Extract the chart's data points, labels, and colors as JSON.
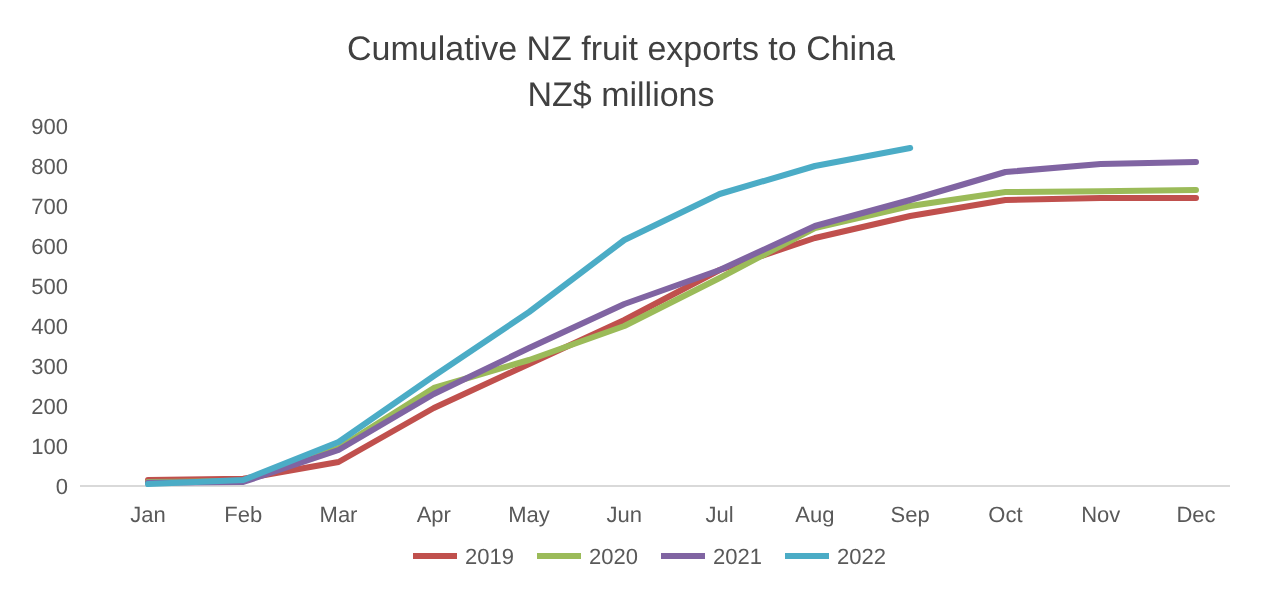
{
  "chart_data": {
    "type": "line",
    "title": "Cumulative NZ fruit exports to China",
    "subtitle": "NZ$ millions",
    "categories": [
      "Jan",
      "Feb",
      "Mar",
      "Apr",
      "May",
      "Jun",
      "Jul",
      "Aug",
      "Sep",
      "Oct",
      "Nov",
      "Dec"
    ],
    "series": [
      {
        "name": "2019",
        "color": "#c0504d",
        "values": [
          15,
          18,
          60,
          195,
          305,
          415,
          540,
          620,
          675,
          715,
          720,
          720
        ]
      },
      {
        "name": "2020",
        "color": "#9bbb59",
        "values": [
          10,
          12,
          95,
          245,
          315,
          400,
          520,
          645,
          700,
          735,
          737,
          740
        ]
      },
      {
        "name": "2021",
        "color": "#8064a2",
        "values": [
          8,
          10,
          90,
          230,
          345,
          455,
          540,
          650,
          715,
          785,
          805,
          810
        ]
      },
      {
        "name": "2022",
        "color": "#4bacc6",
        "values": [
          5,
          15,
          110,
          275,
          435,
          615,
          730,
          800,
          845,
          null,
          null,
          null
        ]
      }
    ],
    "ylim": [
      0,
      900
    ],
    "yticks": [
      0,
      100,
      200,
      300,
      400,
      500,
      600,
      700,
      800,
      900
    ],
    "grid": false,
    "legend": "bottom",
    "marker": "none",
    "line_style": "solid"
  }
}
